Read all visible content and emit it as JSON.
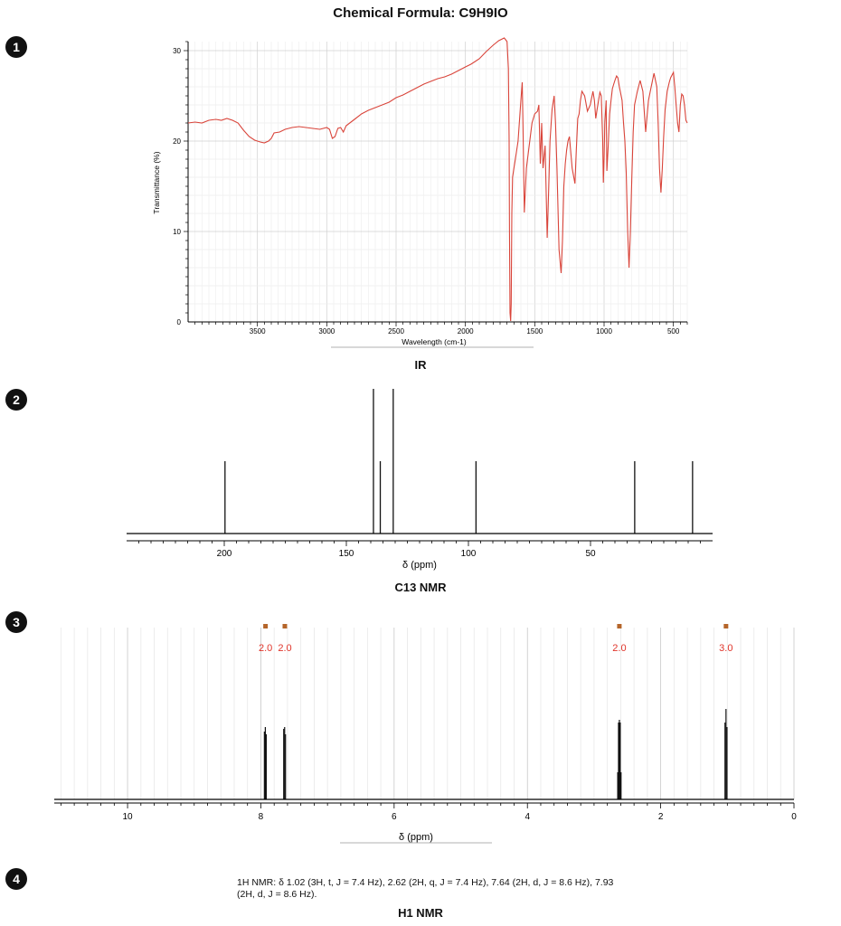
{
  "title": "Chemical Formula: C9H9IO",
  "badges": [
    "1",
    "2",
    "3",
    "4"
  ],
  "colors": {
    "ir_line": "#d9443a",
    "integral_text": "#e0342a",
    "integral_marker": "#b5652a",
    "nmr_peak": "#111111"
  },
  "chart_data": [
    {
      "type": "line",
      "caption": "IR",
      "xlabel": "Wavelength (cm-1)",
      "ylabel": "Transmittance (%)",
      "xlim": [
        4000,
        400
      ],
      "ylim": [
        0,
        31
      ],
      "x_reversed": true,
      "grid": true,
      "xticks": [
        3500,
        3000,
        2500,
        2000,
        1500,
        1000,
        500
      ],
      "yticks": [
        0,
        10,
        20,
        30
      ],
      "series": [
        {
          "x": [
            4000,
            3950,
            3900,
            3850,
            3800,
            3760,
            3720,
            3680,
            3640,
            3600,
            3560,
            3520,
            3480,
            3450,
            3420,
            3400,
            3380,
            3340,
            3300,
            3250,
            3200,
            3150,
            3100,
            3050,
            3000,
            2980,
            2960,
            2940,
            2920,
            2900,
            2880,
            2860,
            2800,
            2750,
            2700,
            2650,
            2600,
            2550,
            2500,
            2450,
            2400,
            2350,
            2300,
            2250,
            2200,
            2150,
            2100,
            2050,
            2000,
            1960,
            1930,
            1900,
            1850,
            1800,
            1760,
            1720,
            1700,
            1690,
            1685,
            1682,
            1678,
            1674,
            1670,
            1665,
            1660,
            1650,
            1640,
            1620,
            1600,
            1590,
            1585,
            1575,
            1560,
            1540,
            1520,
            1500,
            1480,
            1470,
            1460,
            1450,
            1440,
            1425,
            1410,
            1400,
            1390,
            1375,
            1360,
            1350,
            1340,
            1325,
            1310,
            1300,
            1290,
            1280,
            1270,
            1260,
            1250,
            1230,
            1210,
            1200,
            1190,
            1180,
            1170,
            1160,
            1140,
            1120,
            1100,
            1080,
            1070,
            1060,
            1050,
            1040,
            1030,
            1020,
            1010,
            1005,
            1000,
            995,
            985,
            980,
            970,
            960,
            950,
            940,
            930,
            920,
            910,
            900,
            890,
            870,
            860,
            850,
            840,
            830,
            820,
            810,
            800,
            790,
            780,
            760,
            740,
            720,
            700,
            680,
            660,
            640,
            620,
            610,
            600,
            590,
            580,
            570,
            560,
            545,
            530,
            520,
            500,
            490,
            480,
            470,
            460,
            450,
            440,
            430,
            420,
            410,
            400
          ],
          "y": [
            22.0,
            22.1,
            22.0,
            22.3,
            22.4,
            22.3,
            22.5,
            22.3,
            22.0,
            21.2,
            20.5,
            20.1,
            19.9,
            19.8,
            20.0,
            20.3,
            20.9,
            21.0,
            21.3,
            21.5,
            21.6,
            21.5,
            21.4,
            21.3,
            21.5,
            21.3,
            20.3,
            20.5,
            21.4,
            21.5,
            21.0,
            21.7,
            22.4,
            23.0,
            23.4,
            23.7,
            24.0,
            24.3,
            24.8,
            25.1,
            25.5,
            25.9,
            26.3,
            26.6,
            26.9,
            27.1,
            27.4,
            27.8,
            28.2,
            28.5,
            28.8,
            29.1,
            29.9,
            30.6,
            31.1,
            31.4,
            31.0,
            28.0,
            20.0,
            10.0,
            1.0,
            0.1,
            2.0,
            12.0,
            16.0,
            17.0,
            18.0,
            20.0,
            24.5,
            26.5,
            22.0,
            12.1,
            17.0,
            19.5,
            22.0,
            23.0,
            23.3,
            24.0,
            17.5,
            22.0,
            17.0,
            19.5,
            9.3,
            14.5,
            20.0,
            23.5,
            25.0,
            22.0,
            17.0,
            8.0,
            5.4,
            9.0,
            15.0,
            17.5,
            19.0,
            20.0,
            20.5,
            17.0,
            15.3,
            19.0,
            22.5,
            23.0,
            24.5,
            25.5,
            25.0,
            23.3,
            24.0,
            25.5,
            24.5,
            22.5,
            23.5,
            24.5,
            25.4,
            25.0,
            20.0,
            15.4,
            18.0,
            22.0,
            24.5,
            16.7,
            19.5,
            23.0,
            24.5,
            25.8,
            26.3,
            26.8,
            27.2,
            27.0,
            26.0,
            24.5,
            22.0,
            20.0,
            16.5,
            10.0,
            6.0,
            10.0,
            16.0,
            21.0,
            24.0,
            25.5,
            26.7,
            25.5,
            21.0,
            24.5,
            26.0,
            27.5,
            26.0,
            22.0,
            17.0,
            14.3,
            17.0,
            20.5,
            23.5,
            25.5,
            26.5,
            27.0,
            27.6,
            26.0,
            24.0,
            22.0,
            21.0,
            24.0,
            25.2,
            25.0,
            24.0,
            22.3,
            22.0
          ]
        }
      ]
    },
    {
      "type": "bar",
      "caption": "C13 NMR",
      "xlabel": "δ (ppm)",
      "xlim": [
        240,
        0
      ],
      "x_reversed": true,
      "xticks": [
        200,
        150,
        100,
        50
      ],
      "peaks": [
        {
          "x": 199.7,
          "h": 0.5
        },
        {
          "x": 138.9,
          "h": 1.0
        },
        {
          "x": 136.1,
          "h": 0.5
        },
        {
          "x": 130.8,
          "h": 1.0
        },
        {
          "x": 96.9,
          "h": 0.5
        },
        {
          "x": 31.9,
          "h": 0.5
        },
        {
          "x": 8.2,
          "h": 0.5
        }
      ]
    },
    {
      "type": "bar",
      "caption": "H1 NMR",
      "xlabel": "δ (ppm)",
      "xlim": [
        11.1,
        0
      ],
      "x_reversed": true,
      "xticks": [
        10,
        8,
        6,
        4,
        2,
        0
      ],
      "grid": true,
      "integrals": [
        {
          "x": 7.93,
          "label": "2.0"
        },
        {
          "x": 7.64,
          "label": "2.0"
        },
        {
          "x": 2.62,
          "label": "2.0"
        },
        {
          "x": 1.02,
          "label": "3.0"
        }
      ],
      "peaks": [
        {
          "x": 7.947,
          "h": 0.75
        },
        {
          "x": 7.933,
          "h": 0.8
        },
        {
          "x": 7.919,
          "h": 0.72
        },
        {
          "x": 7.657,
          "h": 0.78
        },
        {
          "x": 7.643,
          "h": 0.8
        },
        {
          "x": 7.63,
          "h": 0.72
        },
        {
          "x": 2.645,
          "h": 0.3
        },
        {
          "x": 2.633,
          "h": 0.85
        },
        {
          "x": 2.62,
          "h": 0.88
        },
        {
          "x": 2.607,
          "h": 0.85
        },
        {
          "x": 2.595,
          "h": 0.3
        },
        {
          "x": 1.035,
          "h": 0.85
        },
        {
          "x": 1.02,
          "h": 1.0
        },
        {
          "x": 1.005,
          "h": 0.8
        }
      ]
    }
  ],
  "nmr_text": {
    "line1": "1H NMR: δ 1.02 (3H, t, J = 7.4 Hz), 2.62 (2H, q, J = 7.4 Hz), 7.64 (2H, d, J = 8.6 Hz), 7.93",
    "line2": "(2H, d, J = 8.6 Hz)."
  }
}
